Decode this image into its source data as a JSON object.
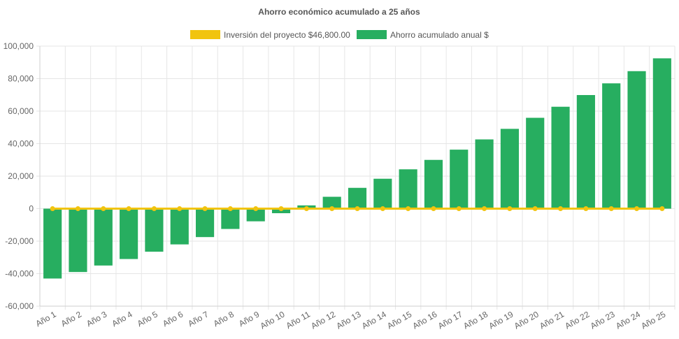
{
  "chart_data": {
    "type": "bar",
    "title": "Ahorro económico acumulado a 25 años",
    "categories": [
      "Año 1",
      "Año 2",
      "Año 3",
      "Año 4",
      "Año 5",
      "Año 6",
      "Año 7",
      "Año 8",
      "Año 9",
      "Año 10",
      "Año 11",
      "Año 12",
      "Año 13",
      "Año 14",
      "Año 15",
      "Año 16",
      "Año 17",
      "Año 18",
      "Año 19",
      "Año 20",
      "Año 21",
      "Año 22",
      "Año 23",
      "Año 24",
      "Año 25"
    ],
    "series": [
      {
        "name": "Inversión del proyecto $46,800.00",
        "type": "line",
        "color": "#f1c40f",
        "values": [
          0,
          0,
          0,
          0,
          0,
          0,
          0,
          0,
          0,
          0,
          0,
          0,
          0,
          0,
          0,
          0,
          0,
          0,
          0,
          0,
          0,
          0,
          0,
          0,
          0
        ]
      },
      {
        "name": "Ahorro acumulado anual $",
        "type": "bar",
        "color": "#27ae60",
        "values": [
          -43000,
          -39000,
          -35000,
          -31000,
          -26500,
          -22000,
          -17500,
          -12500,
          -7800,
          -2800,
          2000,
          7300,
          12800,
          18400,
          24200,
          30000,
          36300,
          42600,
          49100,
          55900,
          62700,
          69900,
          77100,
          84600,
          92500
        ]
      }
    ],
    "ylim": [
      -60000,
      100000
    ],
    "yticks": [
      "100,000",
      "80,000",
      "60,000",
      "40,000",
      "20,000",
      "0",
      "-20,000",
      "-40,000",
      "-60,000"
    ],
    "ytick_values": [
      100000,
      80000,
      60000,
      40000,
      20000,
      0,
      -20000,
      -40000,
      -60000
    ],
    "legend_position": "top",
    "grid": true
  }
}
